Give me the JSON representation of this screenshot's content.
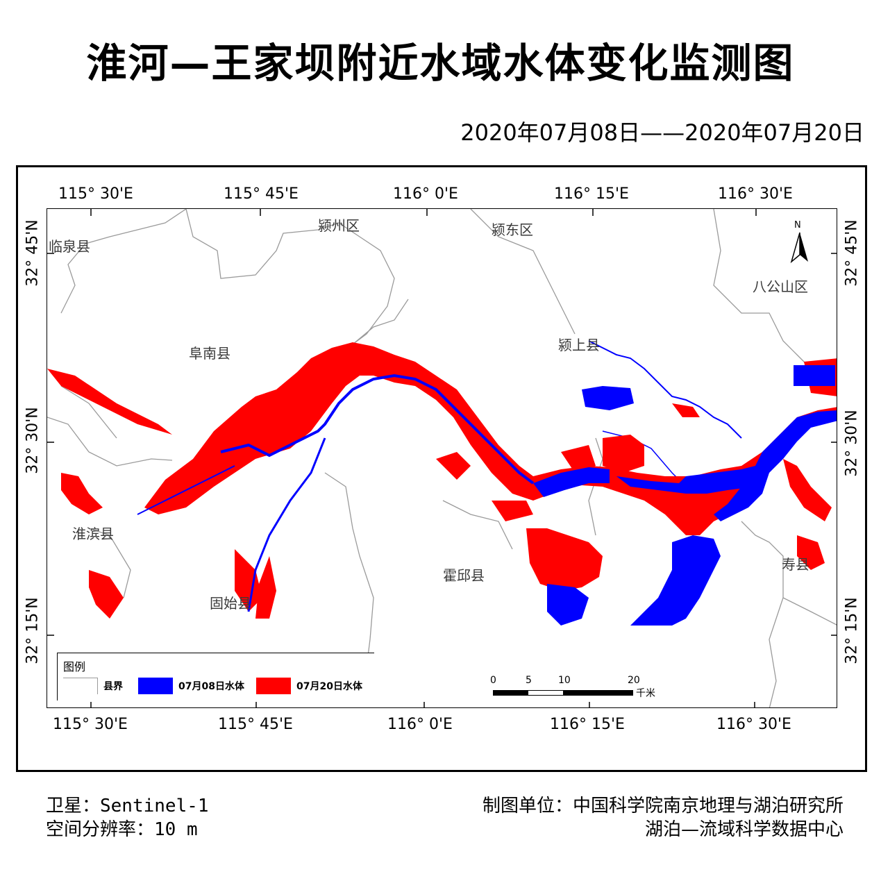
{
  "title": "淮河—王家坝附近水域水体变化监测图",
  "date_range": "2020年07月08日——2020年07月20日",
  "axes": {
    "top_lon_labels": [
      "115° 30'E",
      "115° 45'E",
      "116° 0'E",
      "116° 15'E",
      "116° 30'E"
    ],
    "bottom_lon_labels": [
      "115° 30'E",
      "115° 45'E",
      "116° 0'E",
      "116° 15'E",
      "116° 30'E"
    ],
    "left_lat_labels": [
      "32° 45'N",
      "32° 30'N",
      "32° 15'N"
    ],
    "right_lat_labels": [
      "32° 45'N",
      "32° 30'N",
      "32° 15'N"
    ]
  },
  "places": {
    "linquan": "临泉县",
    "yingzhou": "颍州区",
    "yingdong": "颍东区",
    "bagongshan": "八公山区",
    "funan": "阜南县",
    "yingshang": "颍上县",
    "huaibin": "淮滨县",
    "gushi": "固始县",
    "huoqiu": "霍邱县",
    "shou": "寿县"
  },
  "north_arrow": {
    "label": "N"
  },
  "legend": {
    "title": "图例",
    "items": [
      {
        "label": "县界",
        "color": "#ffffff"
      },
      {
        "label": "07月08日水体",
        "color": "#0000ff"
      },
      {
        "label": "07月20日水体",
        "color": "#ff0000"
      }
    ]
  },
  "scale_bar": {
    "ticks": [
      "0",
      "5",
      "10",
      "20"
    ],
    "unit": "千米"
  },
  "footer": {
    "satellite_label": "卫星：Sentinel-1",
    "resolution_label": "空间分辨率：10 m",
    "producer_label": "制图单位：中国科学院南京地理与湖泊研究所",
    "producer_sub_label": "湖泊—流域科学数据中心"
  },
  "colors": {
    "water_0708": "#0000ff",
    "water_0720": "#ff0000",
    "boundary": "#9a9a9a"
  }
}
